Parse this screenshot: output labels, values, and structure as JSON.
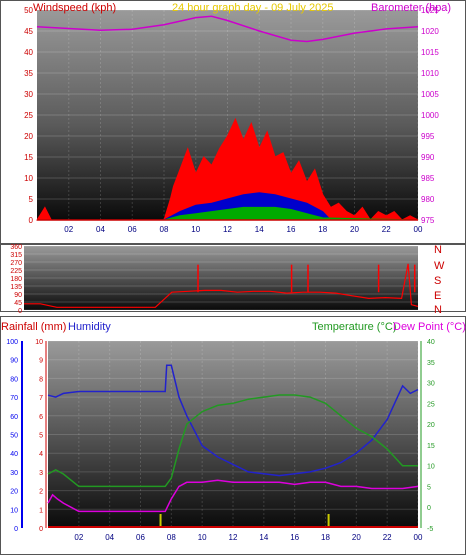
{
  "colors": {
    "wind_axis": "#cc0000",
    "baro": "#cc00cc",
    "title": "#e6c800",
    "gust": "#ff0000",
    "average": "#0000cc",
    "speed": "#00aa00",
    "direction": "#ff0000",
    "humidity": "#2222cc",
    "temperature": "#229922",
    "dewpoint": "#dd00dd",
    "rain_axis": "#0000ee",
    "rain_bar": "#cccc00",
    "frame": "#ffffff"
  },
  "chart_data": [
    {
      "type": "area",
      "title": "24 hour graph day - 09 July 2025",
      "ylabel_left": "Windspeed (kph)",
      "ylabel_right": "Barometer (hpa)",
      "x_ticks": [
        "02",
        "04",
        "06",
        "08",
        "10",
        "12",
        "14",
        "16",
        "18",
        "20",
        "22",
        "00"
      ],
      "x_range": [
        0,
        24
      ],
      "y_left_range": [
        0,
        50
      ],
      "y_left_ticks": [
        "0",
        "5",
        "10",
        "15",
        "20",
        "25",
        "30",
        "35",
        "40",
        "45",
        "50"
      ],
      "y_right_range": [
        975,
        1025
      ],
      "y_right_ticks": [
        "975",
        "980",
        "985",
        "990",
        "995",
        "1000",
        "1005",
        "1010",
        "1015",
        "1020",
        "1025"
      ],
      "series": [
        {
          "name": "Barometer (hpa)",
          "axis": "right",
          "x": [
            0,
            2,
            4,
            6,
            8,
            10,
            11,
            12,
            14,
            16,
            17,
            18,
            20,
            22,
            24
          ],
          "values": [
            1021,
            1020.6,
            1020.2,
            1020.4,
            1021.5,
            1023.2,
            1023.5,
            1022.5,
            1020,
            1017.8,
            1017.5,
            1018,
            1019.5,
            1020.5,
            1021
          ]
        },
        {
          "name": "Gust",
          "axis": "left",
          "x": [
            0,
            0.5,
            0.9,
            1,
            8,
            8.4,
            8.6,
            9,
            9.5,
            10,
            10.5,
            11,
            11.5,
            12,
            12.5,
            13,
            13.5,
            14,
            14.5,
            15,
            15.5,
            16,
            16.5,
            17,
            17.5,
            18,
            18.5,
            19,
            19.5,
            20,
            20.5,
            21,
            21.5,
            22,
            22.5,
            23,
            23.5,
            24
          ],
          "values": [
            0,
            3,
            0,
            0,
            0,
            5,
            8,
            12,
            17,
            11,
            15,
            13,
            17,
            20,
            24,
            19,
            23,
            17,
            21,
            15,
            16,
            11,
            14,
            9,
            12,
            6,
            3,
            4,
            2,
            1,
            3,
            0,
            2,
            1,
            2,
            0,
            1,
            0
          ]
        },
        {
          "name": "Average",
          "axis": "left",
          "x": [
            0,
            8,
            8.5,
            9,
            10,
            11,
            12,
            13,
            14,
            15,
            16,
            17,
            18,
            18.5,
            24
          ],
          "values": [
            0,
            0,
            1,
            2,
            3.5,
            4,
            5,
            6,
            6.5,
            6,
            5,
            4,
            2,
            0,
            0
          ]
        },
        {
          "name": "Speed",
          "axis": "left",
          "x": [
            0,
            8,
            8.5,
            9,
            10,
            11,
            12,
            13,
            14,
            15,
            16,
            17,
            18,
            24
          ],
          "values": [
            0,
            0,
            0.5,
            1,
            1.5,
            2,
            2.5,
            3,
            3,
            3,
            2.5,
            1.5,
            0.5,
            0
          ]
        }
      ]
    },
    {
      "type": "line",
      "y_range": [
        0,
        360
      ],
      "y_ticks": [
        "0",
        "45",
        "90",
        "135",
        "180",
        "225",
        "270",
        "315",
        "360"
      ],
      "compass_labels": [
        "N",
        "W",
        "S",
        "E",
        "N"
      ],
      "series": [
        {
          "name": "Wind direction",
          "x": [
            0,
            0.5,
            1,
            2,
            3,
            4,
            6,
            8,
            9,
            10,
            11,
            12,
            13,
            14,
            15,
            16,
            17,
            18,
            19,
            20,
            21,
            22,
            23,
            23.4,
            23.6,
            24
          ],
          "values": [
            35,
            35,
            35,
            15,
            15,
            15,
            15,
            15,
            100,
            105,
            110,
            110,
            100,
            105,
            105,
            95,
            100,
            100,
            95,
            80,
            65,
            70,
            65,
            260,
            30,
            20
          ]
        }
      ],
      "spikes_x": [
        10.6,
        16.3,
        17.3,
        21.6,
        23.8
      ]
    },
    {
      "type": "line",
      "ylabel_rain": "Rainfall (mm)",
      "ylabel_humidity": "Humidity",
      "ylabel_temperature": "Temperature (°C)",
      "ylabel_dewpoint": "Dew Point (°C)",
      "x_ticks": [
        "02",
        "04",
        "06",
        "08",
        "10",
        "12",
        "14",
        "16",
        "18",
        "20",
        "22",
        "00"
      ],
      "x_range": [
        0,
        24
      ],
      "rain_ticks": [
        "0",
        "1",
        "2",
        "3",
        "4",
        "5",
        "6",
        "7",
        "8",
        "9",
        "10"
      ],
      "rain_range": [
        0,
        10
      ],
      "humidity_ticks": [
        "0",
        "10",
        "20",
        "30",
        "40",
        "50",
        "60",
        "70",
        "80",
        "90",
        "100"
      ],
      "humidity_range": [
        0,
        100
      ],
      "temp_ticks": [
        "-5",
        "0",
        "5",
        "10",
        "15",
        "20",
        "25",
        "30",
        "35",
        "40"
      ],
      "temp_range": [
        -5,
        40
      ],
      "series": [
        {
          "name": "Humidity",
          "axis": "humidity",
          "x": [
            0,
            0.5,
            1,
            2,
            4,
            6,
            7,
            7.6,
            7.7,
            8,
            8.5,
            9,
            10,
            11,
            12,
            13,
            14,
            15,
            16,
            17,
            18,
            19,
            20,
            21,
            22,
            22.5,
            23,
            23.5,
            24
          ],
          "values": [
            71,
            70,
            72,
            73,
            73,
            73,
            73,
            73,
            87,
            87,
            70,
            60,
            44,
            38,
            34,
            30,
            29,
            28,
            29,
            30,
            32,
            35,
            40,
            47,
            58,
            67,
            76,
            72,
            74
          ]
        },
        {
          "name": "Temperature (°C)",
          "axis": "temp",
          "x": [
            0,
            0.5,
            1,
            2,
            4,
            6,
            7,
            7.6,
            8,
            8.5,
            9,
            10,
            11,
            12,
            13,
            14,
            15,
            16,
            17,
            18,
            19,
            20,
            21,
            22,
            23,
            24
          ],
          "values": [
            8,
            9,
            8,
            5,
            5,
            5,
            5,
            5,
            7,
            14,
            20,
            23,
            24.5,
            25,
            26,
            26.5,
            27,
            27,
            26.5,
            25,
            22,
            19,
            17,
            14,
            10,
            10
          ]
        },
        {
          "name": "Dew Point (°C)",
          "axis": "temp",
          "x": [
            0,
            0.3,
            0.6,
            1,
            2,
            4,
            6,
            7,
            7.6,
            8,
            8.5,
            9,
            10,
            11,
            12,
            13,
            14,
            15,
            16,
            17,
            18,
            19,
            20,
            21,
            22,
            23,
            24
          ],
          "values": [
            1,
            3,
            2,
            1,
            -1,
            -1,
            -1,
            -1,
            -1,
            2,
            5,
            6,
            6,
            6.5,
            6,
            6,
            6,
            6,
            5.5,
            6,
            6,
            5,
            5,
            4.5,
            4.5,
            4.5,
            5
          ]
        }
      ],
      "rain_marks_x": [
        7.3,
        18.2
      ]
    }
  ]
}
